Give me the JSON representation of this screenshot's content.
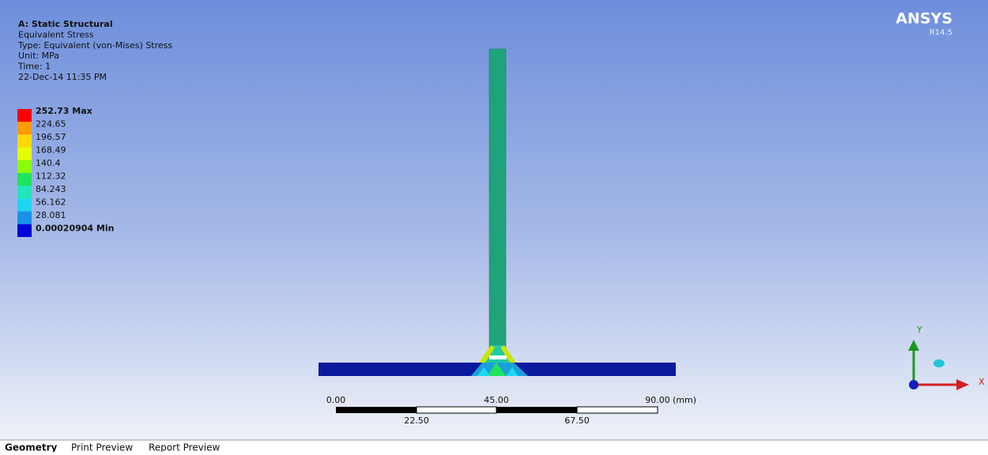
{
  "header": {
    "lines": [
      "A: Static Structural",
      "Equivalent Stress",
      "Type: Equivalent (von-Mises) Stress",
      "Unit: MPa",
      "Time: 1",
      "22-Dec-14 11:35 PM"
    ]
  },
  "logo": {
    "name": "ANSYS",
    "version": "R14.5"
  },
  "legend": {
    "bands": [
      {
        "label": "252.73 Max",
        "color": "#ff0000"
      },
      {
        "label": "224.65",
        "color": "#ff9a00"
      },
      {
        "label": "196.57",
        "color": "#ffd800"
      },
      {
        "label": "168.49",
        "color": "#e6ff00"
      },
      {
        "label": "140.4",
        "color": "#8aff00"
      },
      {
        "label": "112.32",
        "color": "#1fe35a"
      },
      {
        "label": "84.243",
        "color": "#22e6b8"
      },
      {
        "label": "56.162",
        "color": "#1ed6f0"
      },
      {
        "label": "28.081",
        "color": "#1a90e8"
      },
      {
        "label": "0.00020904 Min",
        "color": "#0000d8"
      }
    ]
  },
  "scale_bar": {
    "top_labels": [
      "0.00",
      "45.00",
      "90.00"
    ],
    "unit": "(mm)",
    "bottom_labels": [
      "22.50",
      "67.50"
    ]
  },
  "triad": {
    "y": "Y",
    "x": "X"
  },
  "tabs": [
    "Geometry",
    "Print Preview",
    "Report Preview"
  ]
}
